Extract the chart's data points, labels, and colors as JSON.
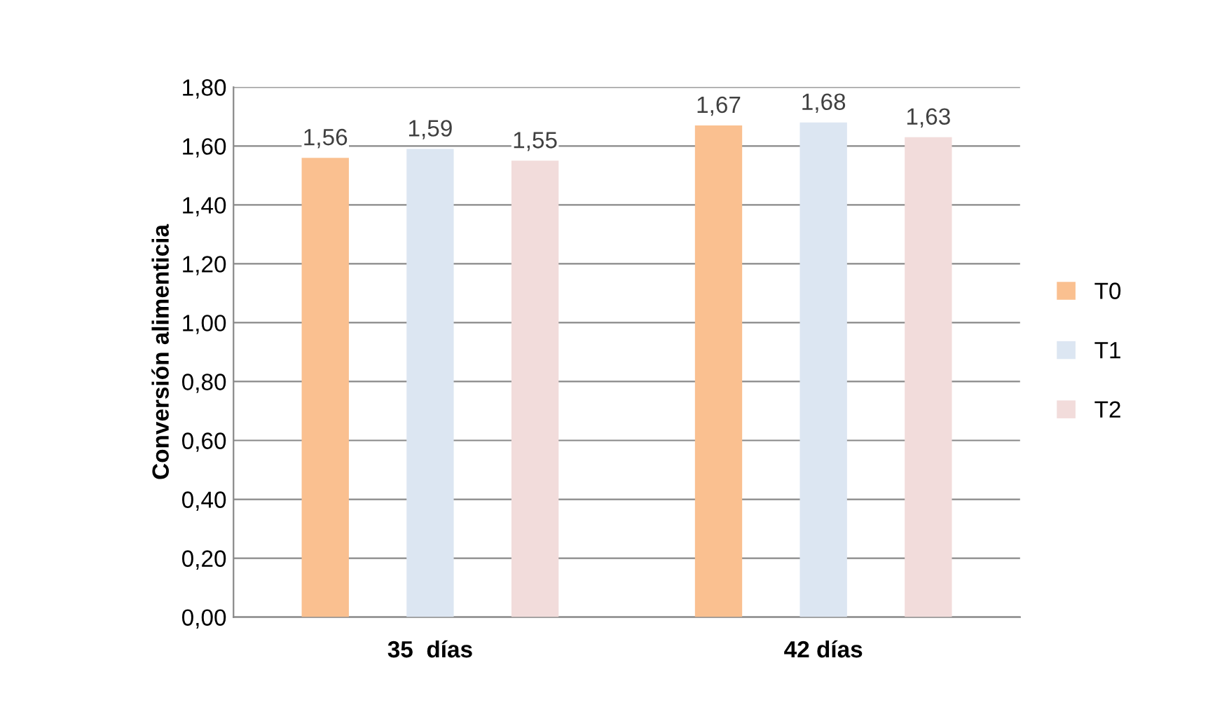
{
  "chart_data": {
    "type": "bar",
    "ylabel": "Conversión alimenticia",
    "categories": [
      "35  días",
      "42 días"
    ],
    "series": [
      {
        "name": "T0",
        "color": "#fac090",
        "values": [
          1.56,
          1.67
        ],
        "value_labels": [
          "1,56",
          "1,67"
        ]
      },
      {
        "name": "T1",
        "color": "#dce6f2",
        "values": [
          1.59,
          1.68
        ],
        "value_labels": [
          "1,59",
          "1,68"
        ]
      },
      {
        "name": "T2",
        "color": "#f2dcdb",
        "values": [
          1.55,
          1.63
        ],
        "value_labels": [
          "1,55",
          "1,63"
        ]
      }
    ],
    "ylim": [
      0,
      1.8
    ],
    "yticks": [
      {
        "value": 0,
        "label": "0,00"
      },
      {
        "value": 0.2,
        "label": "0,20"
      },
      {
        "value": 0.4,
        "label": "0,40"
      },
      {
        "value": 0.6,
        "label": "0,60"
      },
      {
        "value": 0.8,
        "label": "0,80"
      },
      {
        "value": 1.0,
        "label": "1,00"
      },
      {
        "value": 1.2,
        "label": "1,20"
      },
      {
        "value": 1.4,
        "label": "1,40"
      },
      {
        "value": 1.6,
        "label": "1,60"
      },
      {
        "value": 1.8,
        "label": "1,80"
      }
    ],
    "grid": "y",
    "legend": "right"
  }
}
